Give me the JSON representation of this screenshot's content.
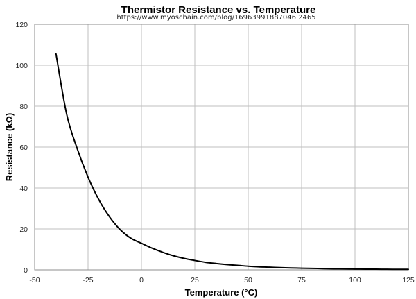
{
  "chart_data": {
    "type": "line",
    "title": "Thermistor Resistance vs. Temperature",
    "subtitle": "https://www.myoschain.com/blog/16963991887046 2465",
    "xlabel": "Temperature (°C)",
    "ylabel": "Resistance (kΩ)",
    "xlim": [
      -50,
      125
    ],
    "ylim": [
      0,
      120
    ],
    "xticks": [
      -50,
      -25,
      0,
      25,
      50,
      75,
      100,
      125
    ],
    "yticks": [
      0,
      20,
      40,
      60,
      80,
      100,
      120
    ],
    "grid": true,
    "legend": "none",
    "colors": {
      "series": "#000000",
      "grid": "#bfbfbf",
      "frame": "#8c8c8c"
    },
    "series": [
      {
        "x": [
          -40,
          -35,
          -30,
          -25,
          -20,
          -15,
          -10,
          -5,
          0,
          5,
          10,
          15,
          20,
          25,
          30,
          35,
          40,
          45,
          50,
          55,
          60,
          65,
          70,
          75,
          80,
          85,
          90,
          95,
          100,
          105,
          110,
          115,
          120,
          125
        ],
        "values": [
          105.5,
          76.0,
          59.0,
          45.3,
          34.4,
          26.0,
          19.7,
          15.5,
          13.0,
          10.6,
          8.6,
          6.9,
          5.6,
          4.6,
          3.7,
          3.1,
          2.6,
          2.2,
          1.8,
          1.5,
          1.3,
          1.1,
          0.95,
          0.82,
          0.71,
          0.61,
          0.53,
          0.46,
          0.4,
          0.36,
          0.32,
          0.29,
          0.26,
          0.24
        ]
      }
    ]
  }
}
